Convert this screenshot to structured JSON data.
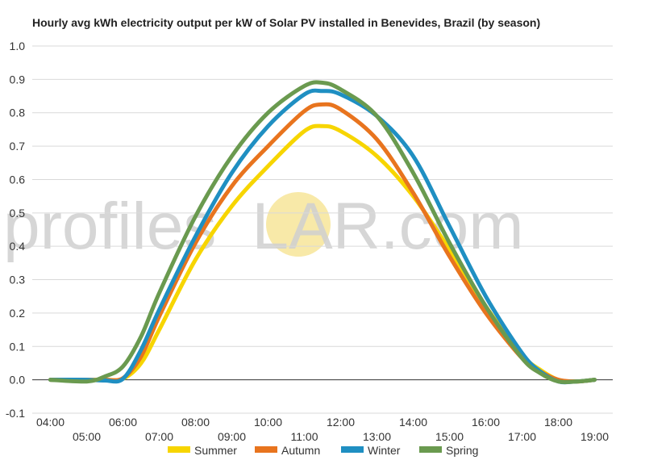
{
  "watermark": {
    "part1": "profile",
    "part2": "s",
    "part3": "LAR.com",
    "sun_color": "#f8e9a8"
  },
  "chart_data": {
    "type": "line",
    "title": "Hourly avg kWh electricity output per kW of Solar PV installed in Benevides, Brazil (by season)",
    "xlabel": "",
    "ylabel": "",
    "ylim": [
      -0.1,
      1.0
    ],
    "yticks": [
      -0.1,
      0.0,
      0.1,
      0.2,
      0.3,
      0.4,
      0.5,
      0.6,
      0.7,
      0.8,
      0.9,
      1.0
    ],
    "ytick_labels": [
      "-0.1",
      "0.0",
      "0.1",
      "0.2",
      "0.3",
      "0.4",
      "0.5",
      "0.6",
      "0.7",
      "0.8",
      "0.9",
      "1.0"
    ],
    "xlim": [
      3.5,
      19.5
    ],
    "x_hours": [
      4,
      5,
      6,
      7,
      8,
      9,
      10,
      11,
      12,
      13,
      14,
      15,
      16,
      17,
      18,
      19
    ],
    "x_labels": [
      "04:00",
      "05:00",
      "06:00",
      "07:00",
      "08:00",
      "09:00",
      "10:00",
      "11:00",
      "12:00",
      "13:00",
      "14:00",
      "15:00",
      "16:00",
      "17:00",
      "18:00",
      "19:00"
    ],
    "grid": true,
    "legend_position": "bottom",
    "series": [
      {
        "name": "Summer",
        "color": "#f7d500",
        "x": [
          4,
          5,
          5.5,
          6,
          6.5,
          7,
          8,
          9,
          10,
          11,
          11.5,
          12,
          13,
          14,
          15,
          16,
          17,
          17.5,
          18,
          18.5,
          19
        ],
        "values": [
          0.0,
          0.0,
          0.0,
          0.003,
          0.05,
          0.15,
          0.36,
          0.52,
          0.64,
          0.745,
          0.76,
          0.745,
          0.67,
          0.55,
          0.39,
          0.22,
          0.075,
          0.03,
          0.0,
          -0.005,
          0.0
        ]
      },
      {
        "name": "Autumn",
        "color": "#e8741e",
        "x": [
          4,
          5,
          5.5,
          6,
          6.5,
          7,
          8,
          9,
          10,
          11,
          11.5,
          12,
          13,
          14,
          15,
          16,
          17,
          17.5,
          18,
          18.5,
          19
        ],
        "values": [
          0.0,
          0.0,
          0.0,
          0.005,
          0.07,
          0.19,
          0.41,
          0.58,
          0.7,
          0.805,
          0.825,
          0.81,
          0.72,
          0.56,
          0.37,
          0.2,
          0.065,
          0.025,
          0.0,
          -0.005,
          0.0
        ]
      },
      {
        "name": "Winter",
        "color": "#1f8fc2",
        "x": [
          4,
          5,
          5.5,
          6,
          6.5,
          7,
          8,
          9,
          10,
          11,
          11.5,
          12,
          13,
          14,
          15,
          16,
          17,
          17.5,
          18,
          18.5,
          19
        ],
        "values": [
          0.0,
          0.0,
          -0.002,
          0.003,
          0.09,
          0.21,
          0.43,
          0.62,
          0.76,
          0.855,
          0.865,
          0.855,
          0.79,
          0.67,
          0.46,
          0.25,
          0.08,
          0.025,
          -0.005,
          -0.005,
          0.0
        ]
      },
      {
        "name": "Spring",
        "color": "#6a9a4f",
        "x": [
          4,
          5,
          5.5,
          6,
          6.5,
          7,
          8,
          9,
          10,
          11,
          11.5,
          12,
          13,
          14,
          15,
          16,
          17,
          17.5,
          18,
          18.5,
          19
        ],
        "values": [
          0.0,
          -0.005,
          0.01,
          0.04,
          0.13,
          0.26,
          0.49,
          0.67,
          0.8,
          0.88,
          0.89,
          0.87,
          0.79,
          0.62,
          0.41,
          0.22,
          0.065,
          0.02,
          -0.005,
          -0.005,
          0.0
        ]
      }
    ]
  }
}
